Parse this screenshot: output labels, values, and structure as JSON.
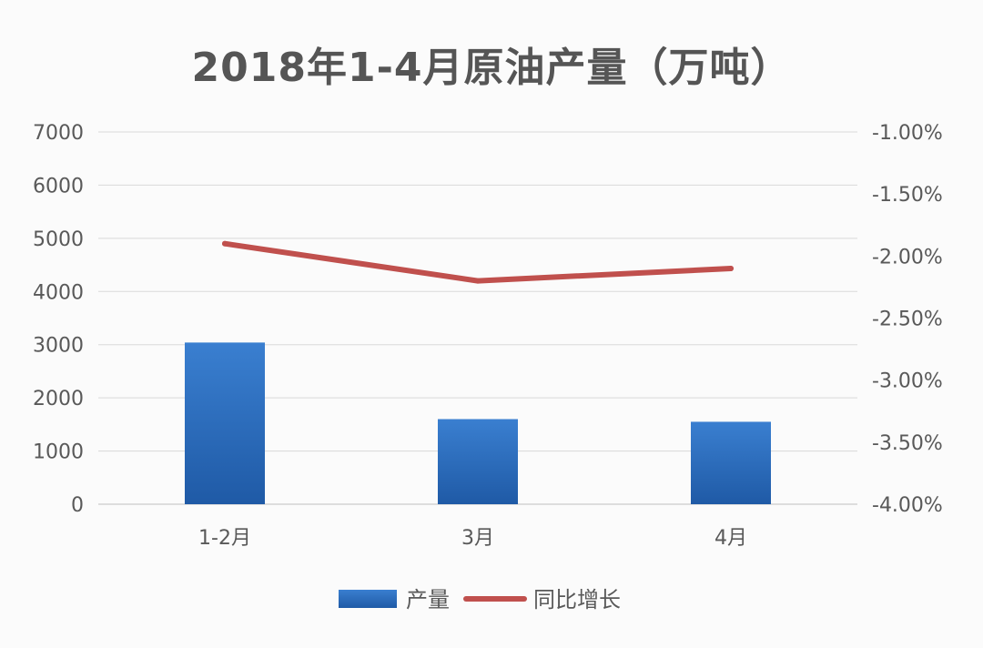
{
  "chart_data": {
    "type": "bar",
    "title": "2018年1-4月原油产量（万吨）",
    "categories": [
      "1-2月",
      "3月",
      "4月"
    ],
    "series": [
      {
        "name": "产量",
        "type": "bar",
        "axis": "left",
        "color": "#2f6fb8",
        "values": [
          3040,
          1600,
          1550
        ]
      },
      {
        "name": "同比增长",
        "type": "line",
        "axis": "right",
        "color": "#c0504d",
        "values": [
          -1.9,
          -2.2,
          -2.1
        ],
        "unit": "%"
      }
    ],
    "left_axis": {
      "min": 0,
      "max": 7000,
      "ticks": [
        0,
        1000,
        2000,
        3000,
        4000,
        5000,
        6000,
        7000
      ],
      "tick_labels": [
        "0",
        "1000",
        "2000",
        "3000",
        "4000",
        "5000",
        "6000",
        "7000"
      ]
    },
    "right_axis": {
      "min": -4.0,
      "max": -1.0,
      "ticks": [
        -4.0,
        -3.5,
        -3.0,
        -2.5,
        -2.0,
        -1.5,
        -1.0
      ],
      "tick_labels": [
        "-4.00%",
        "-3.50%",
        "-3.00%",
        "-2.50%",
        "-2.00%",
        "-1.50%",
        "-1.00%"
      ]
    },
    "grid": true,
    "legend_position": "bottom"
  }
}
